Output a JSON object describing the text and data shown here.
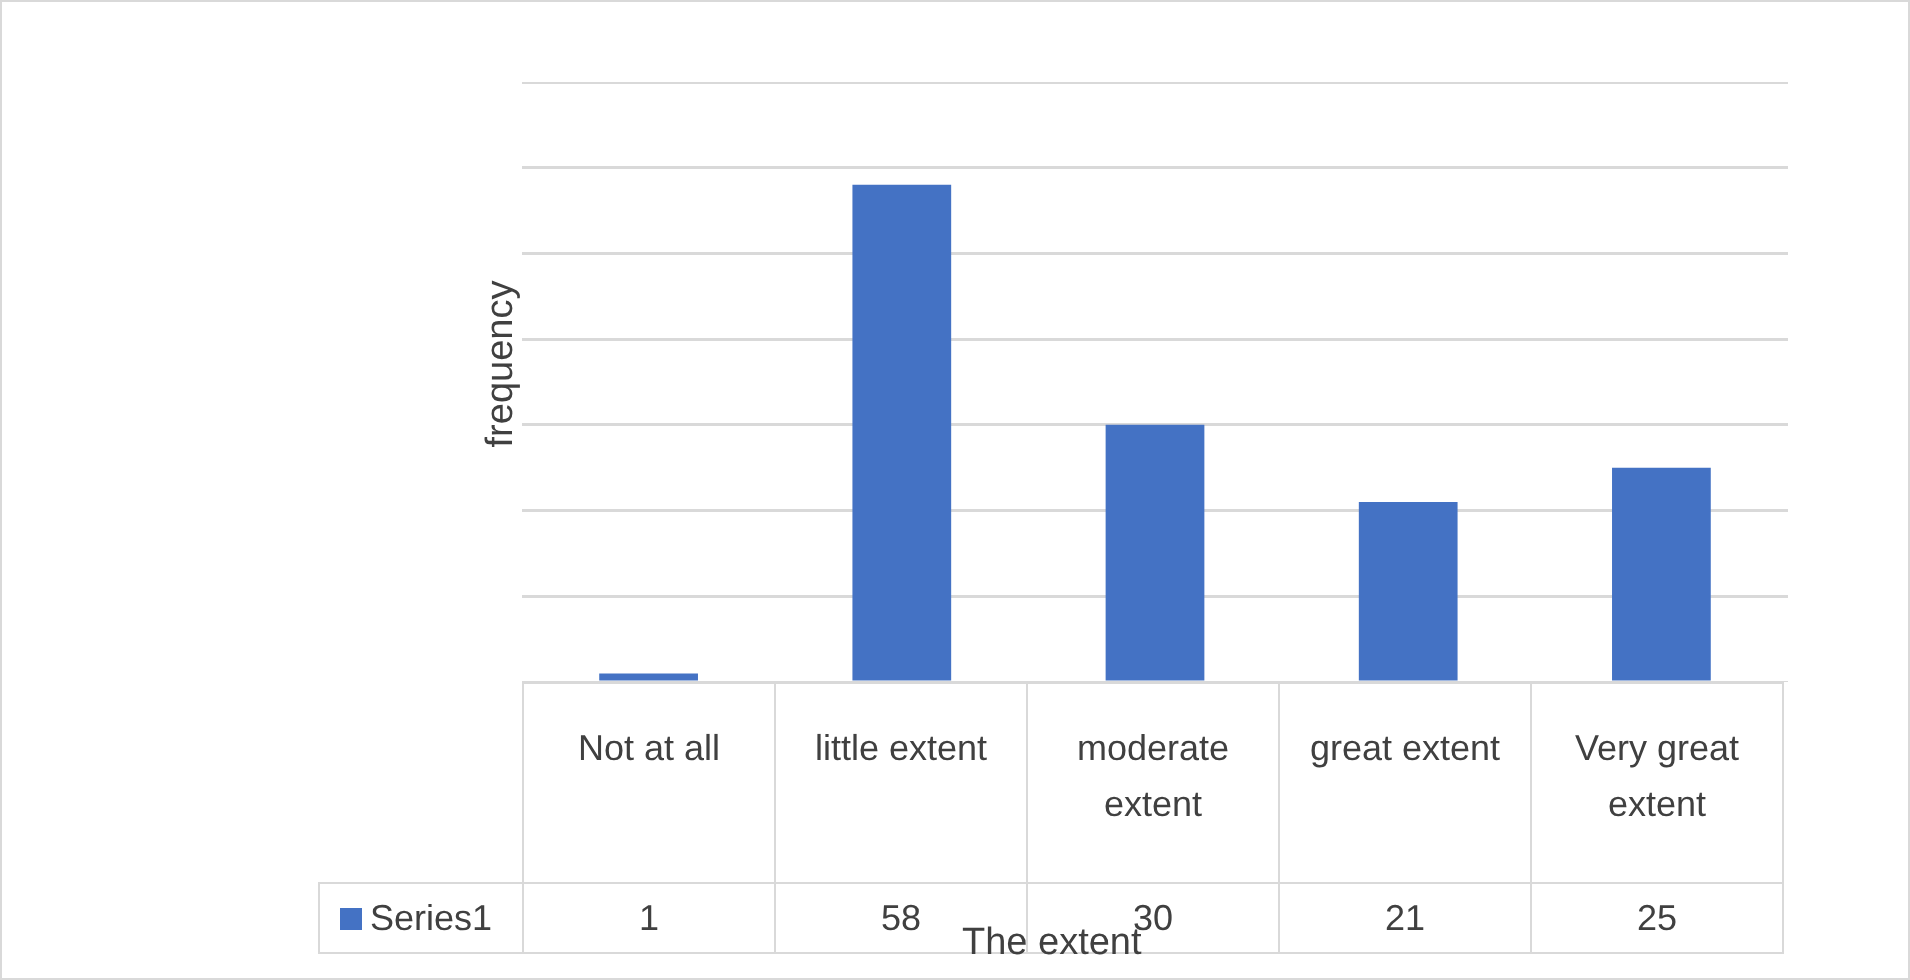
{
  "chart_data": {
    "type": "bar",
    "xlabel": "The extent",
    "ylabel": "frequency",
    "categories": [
      "Not at all",
      "little extent",
      "moderate extent",
      "great extent",
      "Very great extent"
    ],
    "series": [
      {
        "name": "Series1",
        "color": "#4472c4",
        "values": [
          1,
          58,
          30,
          21,
          25
        ]
      }
    ],
    "ylim": [
      0,
      70
    ],
    "yticks": [
      {
        "value": 0,
        "label": null
      },
      {
        "value": 10,
        "label": null
      },
      {
        "value": 20,
        "label": null
      },
      {
        "value": 30,
        "label": null
      },
      {
        "value": 40,
        "label": null
      },
      {
        "value": 50,
        "label": null
      },
      {
        "value": 60,
        "label": null
      },
      {
        "value": 70,
        "label": null
      }
    ],
    "grid": "y",
    "legend": "bottom left",
    "data_labels": true,
    "tick_labels": false
  }
}
